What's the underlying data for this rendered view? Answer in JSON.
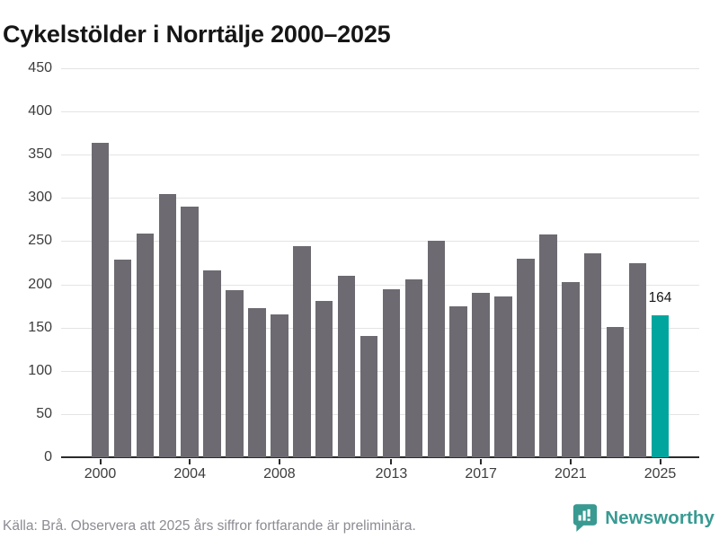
{
  "title": "Cykelstölder i Norrtälje 2000–2025",
  "footer": {
    "source_text": "Källa: Brå. Observera att 2025 års siffror fortfarande är preliminära."
  },
  "logo": {
    "name": "Newsworthy",
    "icon": "bar-chart-speech-bubble-icon",
    "color": "#399a92"
  },
  "colors": {
    "bar_default": "#6d6a71",
    "bar_highlight": "#00a69d",
    "gridline": "#e4e4e4",
    "axis": "#2b2b2b",
    "title_text": "#161616",
    "tick_text": "#3d3d3d",
    "footer_text": "#8b8b93"
  },
  "chart_data": {
    "type": "bar",
    "title": "Cykelstölder i Norrtälje 2000–2025",
    "xlabel": "",
    "ylabel": "",
    "categories": [
      2000,
      2001,
      2002,
      2003,
      2004,
      2005,
      2006,
      2007,
      2008,
      2009,
      2010,
      2011,
      2012,
      2013,
      2014,
      2015,
      2016,
      2017,
      2018,
      2019,
      2020,
      2021,
      2022,
      2023,
      2024,
      2025
    ],
    "values": [
      364,
      229,
      259,
      305,
      290,
      216,
      193,
      173,
      165,
      244,
      181,
      210,
      140,
      194,
      206,
      250,
      175,
      190,
      186,
      230,
      258,
      203,
      236,
      151,
      224,
      164
    ],
    "ylim": [
      0,
      450
    ],
    "ytick_step": 50,
    "yticks": [
      0,
      50,
      100,
      150,
      200,
      250,
      300,
      350,
      400,
      450
    ],
    "xticks": [
      2000,
      2004,
      2008,
      2013,
      2017,
      2021,
      2025
    ],
    "grid": true,
    "legend": false,
    "highlight_year": 2025,
    "annotation": {
      "text": "164",
      "year": 2025
    }
  }
}
